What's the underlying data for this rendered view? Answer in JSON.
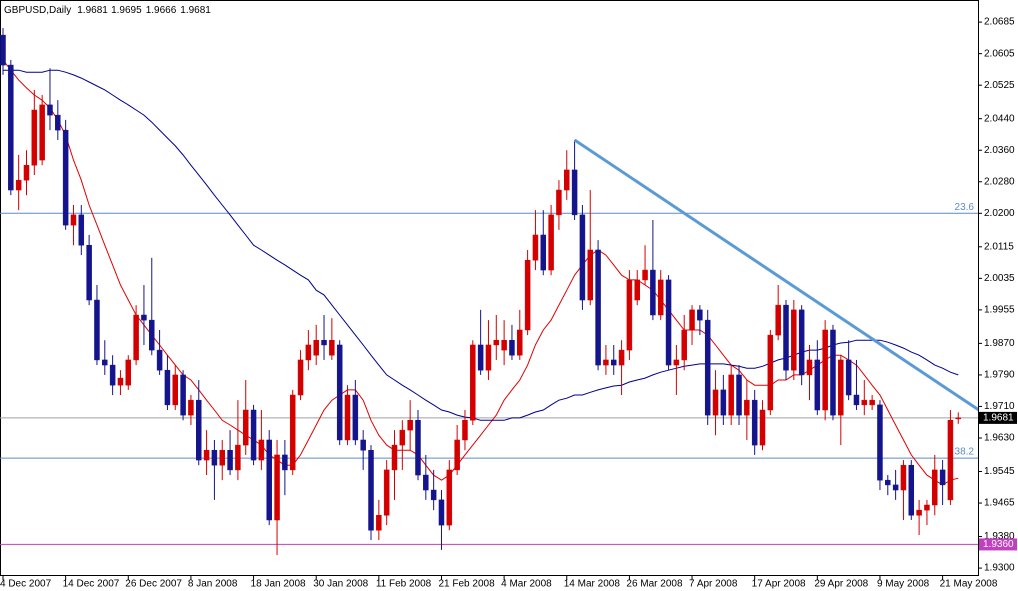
{
  "chart_data": {
    "type": "candlestick",
    "title": "GBPUSD,Daily",
    "categories": [
      "4 Dec 2007",
      null,
      null,
      null,
      null,
      null,
      null,
      null,
      "14 Dec 2007",
      null,
      null,
      null,
      null,
      null,
      null,
      null,
      "26 Dec 2007",
      null,
      null,
      null,
      null,
      null,
      null,
      null,
      "8 Jan 2008",
      null,
      null,
      null,
      null,
      null,
      null,
      null,
      "18 Jan 2008",
      null,
      null,
      null,
      null,
      null,
      null,
      null,
      "30 Jan 2008",
      null,
      null,
      null,
      null,
      null,
      null,
      null,
      "11 Feb 2008",
      null,
      null,
      null,
      null,
      null,
      null,
      null,
      "21 Feb 2008",
      null,
      null,
      null,
      null,
      null,
      null,
      null,
      "4 Mar 2008",
      null,
      null,
      null,
      null,
      null,
      null,
      null,
      "14 Mar 2008",
      null,
      null,
      null,
      null,
      null,
      null,
      null,
      "26 Mar 2008",
      null,
      null,
      null,
      null,
      null,
      null,
      null,
      "7 Apr 2008",
      null,
      null,
      null,
      null,
      null,
      null,
      null,
      "17 Apr 2008",
      null,
      null,
      null,
      null,
      null,
      null,
      null,
      "29 Apr 2008",
      null,
      null,
      null,
      null,
      null,
      null,
      null,
      "9 May 2008",
      null,
      null,
      null,
      null,
      null,
      null,
      null,
      "21 May 2008",
      null,
      null
    ],
    "open": [
      2.0652,
      2.0576,
      2.0259,
      2.0284,
      2.0322,
      2.0335,
      2.0475,
      2.0449,
      2.0411,
      2.017,
      2.0196,
      2.0119,
      1.998,
      1.9828,
      1.9815,
      1.9764,
      1.9764,
      1.9828,
      1.9942,
      1.9929,
      1.9853,
      1.9802,
      1.9714,
      1.979,
      1.9688,
      1.9726,
      1.9574,
      1.9599,
      1.9561,
      1.9599,
      1.9549,
      1.9612,
      1.9701,
      1.9574,
      1.9625,
      1.9422,
      1.9587,
      1.9549,
      1.9739,
      1.9828,
      1.984,
      1.9878,
      1.984,
      1.9866,
      1.9625,
      1.9739,
      1.9625,
      1.9599,
      1.9396,
      1.9434,
      1.9549,
      1.9612,
      1.965,
      1.9675,
      1.9536,
      1.9498,
      1.9473,
      1.9409,
      1.9549,
      1.9625,
      1.9675,
      1.9866,
      1.9802,
      1.9866,
      1.9853,
      1.9878,
      1.984,
      1.9904,
      2.0081,
      2.0145,
      2.0056,
      2.0196,
      2.0259,
      2.031,
      2.0196,
      1.998,
      2.0107,
      1.9815,
      1.9828,
      1.9815,
      1.9853,
      1.998,
      2.0031,
      2.0056,
      1.9942,
      2.0031,
      1.9815,
      1.9828,
      1.9904,
      1.9955,
      1.9929,
      1.9688,
      1.9752,
      1.9688,
      1.979,
      1.9688,
      1.9726,
      1.9612,
      1.9701,
      1.9891,
      1.9967,
      1.9802,
      1.9955,
      1.979,
      1.9828,
      1.9701,
      1.9904,
      1.9688,
      1.9828,
      1.9739,
      1.9714,
      1.9714,
      1.9714,
      1.9523,
      1.9511,
      1.9498,
      1.9561,
      1.9434,
      1.9447,
      1.946,
      1.9549,
      1.9473,
      1.9681
    ],
    "high": [
      2.067,
      2.0589,
      2.0348,
      2.036,
      2.0513,
      2.05,
      2.0568,
      2.0487,
      2.0437,
      2.0221,
      2.0221,
      2.0145,
      2.0018,
      1.9878,
      1.984,
      1.9802,
      1.984,
      1.9967,
      2.0018,
      2.0087,
      1.9904,
      1.984,
      1.9815,
      1.9802,
      1.9739,
      1.9777,
      1.965,
      1.9625,
      1.9625,
      1.965,
      1.9726,
      1.9777,
      1.9714,
      1.9701,
      1.965,
      1.9625,
      1.9625,
      1.9752,
      1.9853,
      1.9904,
      1.9917,
      1.9942,
      1.9934,
      1.9878,
      1.9764,
      1.9777,
      1.965,
      1.9612,
      1.9473,
      1.9574,
      1.965,
      1.9675,
      1.9726,
      1.9701,
      1.9587,
      1.9549,
      1.9498,
      1.9574,
      1.9663,
      1.9701,
      1.9878,
      1.9955,
      1.9929,
      1.9942,
      1.9929,
      1.9917,
      1.9955,
      2.0107,
      2.0208,
      2.0208,
      2.0221,
      2.0284,
      2.036,
      2.0386,
      2.0221,
      2.0259,
      2.0132,
      1.9866,
      1.9866,
      1.9878,
      2.0056,
      2.0056,
      2.0119,
      2.0183,
      2.0056,
      2.0043,
      1.9866,
      1.9942,
      1.9967,
      1.9967,
      1.9955,
      1.9802,
      1.979,
      1.9815,
      1.9815,
      1.9777,
      1.9752,
      1.9726,
      1.9904,
      2.0018,
      1.998,
      1.998,
      1.9967,
      1.9866,
      1.9878,
      1.9929,
      1.9917,
      1.984,
      1.9878,
      1.9828,
      1.9777,
      1.9739,
      1.9726,
      1.9536,
      1.9549,
      1.9574,
      1.9574,
      1.9473,
      1.9473,
      1.9587,
      1.9574,
      1.9701,
      1.9695
    ],
    "low": [
      2.0551,
      2.0246,
      2.0208,
      2.0246,
      2.0297,
      2.0322,
      2.0411,
      2.0386,
      2.0158,
      2.0119,
      2.0094,
      1.9967,
      1.9815,
      1.979,
      1.9739,
      1.9739,
      1.9752,
      1.9815,
      1.9866,
      1.984,
      1.979,
      1.9701,
      1.9701,
      1.9675,
      1.9663,
      1.9561,
      1.9536,
      1.9473,
      1.9523,
      1.9536,
      1.9523,
      1.9587,
      1.9561,
      1.9549,
      1.9409,
      1.9333,
      1.9485,
      1.9536,
      1.9726,
      1.9802,
      1.9815,
      1.9828,
      1.9828,
      1.9612,
      1.9612,
      1.9612,
      1.9549,
      1.9371,
      1.9371,
      1.9409,
      1.9473,
      1.9549,
      1.9599,
      1.9523,
      1.9473,
      1.9447,
      1.9346,
      1.9396,
      1.9536,
      1.9599,
      1.9663,
      1.979,
      1.9777,
      1.9828,
      1.9815,
      1.9828,
      1.9828,
      1.9891,
      2.0056,
      2.0043,
      2.0043,
      2.0158,
      2.0234,
      2.0183,
      1.9955,
      1.9967,
      1.9802,
      1.979,
      1.979,
      1.9739,
      1.9828,
      1.9967,
      2.0018,
      1.9929,
      1.9929,
      1.9802,
      1.9739,
      1.9802,
      1.9866,
      1.9891,
      1.9663,
      1.9637,
      1.9663,
      1.9663,
      1.9663,
      1.9625,
      1.9587,
      1.9599,
      1.9688,
      1.9878,
      1.9777,
      1.9777,
      1.9764,
      1.9726,
      1.9688,
      1.9675,
      1.9675,
      1.9612,
      1.9726,
      1.9701,
      1.9688,
      1.9701,
      1.9498,
      1.9485,
      1.9473,
      1.9422,
      1.9422,
      1.9384,
      1.9409,
      1.9434,
      1.946,
      1.946,
      1.9666
    ],
    "close": [
      2.0576,
      2.0259,
      2.0284,
      2.0322,
      2.0462,
      2.0475,
      2.0449,
      2.0411,
      2.017,
      2.0196,
      2.0119,
      1.998,
      1.9828,
      1.9815,
      1.9764,
      1.9782,
      1.9828,
      1.9942,
      1.9929,
      1.9853,
      1.9802,
      1.9714,
      1.979,
      1.9688,
      1.9726,
      1.9574,
      1.9599,
      1.9561,
      1.9599,
      1.9549,
      1.9612,
      1.9701,
      1.9574,
      1.9625,
      1.9422,
      1.9587,
      1.9549,
      1.9739,
      1.9828,
      1.9866,
      1.9878,
      1.9866,
      1.9878,
      1.9625,
      1.9739,
      1.9625,
      1.9599,
      1.9396,
      1.9434,
      1.9549,
      1.9612,
      1.965,
      1.9675,
      1.9536,
      1.9498,
      1.9473,
      1.9409,
      1.9549,
      1.9625,
      1.9675,
      1.9866,
      1.9802,
      1.9866,
      1.9878,
      1.9878,
      1.984,
      1.9904,
      2.0081,
      2.0145,
      2.0056,
      2.0196,
      2.0259,
      2.031,
      2.0196,
      1.998,
      2.0107,
      1.9815,
      1.9828,
      1.9815,
      1.9853,
      2.0031,
      2.0031,
      2.0056,
      1.9942,
      2.0031,
      1.9815,
      1.9828,
      1.9904,
      1.9955,
      1.9929,
      1.9688,
      1.9752,
      1.9688,
      1.979,
      1.9688,
      1.9726,
      1.9612,
      1.9701,
      1.9891,
      1.9967,
      1.9802,
      1.9955,
      1.979,
      1.9828,
      1.9701,
      1.9904,
      1.9688,
      1.9828,
      1.9739,
      1.9714,
      1.9726,
      1.9726,
      1.9523,
      1.9511,
      1.9498,
      1.9561,
      1.9434,
      1.9447,
      1.946,
      1.9549,
      1.9511,
      1.9675,
      1.9681
    ],
    "up_color": "#d40000",
    "down_color": "#14148c",
    "lines": [
      {
        "color": "#e00000",
        "values": [
          2.0589,
          2.0563,
          2.0538,
          2.0518,
          2.05,
          2.0487,
          2.0467,
          2.0437,
          2.0398,
          2.0335,
          2.0284,
          2.0221,
          2.017,
          2.0119,
          2.0069,
          2.0018,
          1.998,
          1.9942,
          1.9917,
          1.9891,
          1.9866,
          1.984,
          1.9815,
          1.979,
          1.9777,
          1.9752,
          1.9726,
          1.9701,
          1.9675,
          1.9663,
          1.965,
          1.9637,
          1.9625,
          1.9612,
          1.9587,
          1.9574,
          1.9561,
          1.9561,
          1.9587,
          1.9625,
          1.9663,
          1.9701,
          1.9726,
          1.9739,
          1.9752,
          1.9752,
          1.9726,
          1.9675,
          1.9637,
          1.9612,
          1.9599,
          1.9599,
          1.9599,
          1.9587,
          1.9561,
          1.9536,
          1.9523,
          1.9536,
          1.9561,
          1.9587,
          1.9612,
          1.9637,
          1.9663,
          1.9688,
          1.9726,
          1.9752,
          1.9777,
          1.9815,
          1.9866,
          1.9904,
          1.9929,
          1.9967,
          2.0005,
          2.0043,
          2.0069,
          2.0094,
          2.0107,
          2.0094,
          2.0069,
          2.0043,
          2.0031,
          2.0031,
          2.0018,
          2.0005,
          1.998,
          1.9955,
          1.9929,
          1.9904,
          1.9904,
          1.9904,
          1.9891,
          1.9866,
          1.984,
          1.9815,
          1.9802,
          1.9777,
          1.9764,
          1.9764,
          1.9764,
          1.9777,
          1.9777,
          1.979,
          1.979,
          1.9802,
          1.9815,
          1.9828,
          1.984,
          1.984,
          1.9828,
          1.9815,
          1.979,
          1.9764,
          1.9739,
          1.9701,
          1.9663,
          1.9625,
          1.9587,
          1.9561,
          1.9536,
          1.9523,
          1.9511,
          1.9523,
          1.9528
        ]
      },
      {
        "color": "#00008c",
        "values": [
          2.0563,
          2.0563,
          2.0563,
          2.0558,
          2.0558,
          2.0558,
          2.0563,
          2.0563,
          2.0558,
          2.0551,
          2.0543,
          2.0533,
          2.0523,
          2.0513,
          2.05,
          2.0487,
          2.0475,
          2.0462,
          2.0449,
          2.0431,
          2.0411,
          2.0391,
          2.0371,
          2.0348,
          2.0322,
          2.0297,
          2.0272,
          2.0246,
          2.0221,
          2.0196,
          2.017,
          2.0145,
          2.0119,
          2.0107,
          2.0094,
          2.0081,
          2.0069,
          2.0056,
          2.0043,
          2.0031,
          2.0005,
          1.9993,
          1.9967,
          1.9942,
          1.9917,
          1.9891,
          1.9866,
          1.984,
          1.9815,
          1.979,
          1.9777,
          1.9764,
          1.9752,
          1.9739,
          1.9726,
          1.9714,
          1.9701,
          1.9696,
          1.9688,
          1.9683,
          1.9681,
          1.9675,
          1.9675,
          1.9675,
          1.9675,
          1.9681,
          1.9681,
          1.9688,
          1.9696,
          1.9701,
          1.9714,
          1.9726,
          1.9731,
          1.9739,
          1.9739,
          1.9746,
          1.9752,
          1.9757,
          1.9762,
          1.9764,
          1.9772,
          1.9777,
          1.9782,
          1.979,
          1.9797,
          1.9802,
          1.9807,
          1.9812,
          1.9815,
          1.9818,
          1.9818,
          1.9818,
          1.9818,
          1.9815,
          1.9812,
          1.9807,
          1.9807,
          1.9812,
          1.982,
          1.9828,
          1.9833,
          1.984,
          1.9848,
          1.9853,
          1.9853,
          1.9858,
          1.9866,
          1.9871,
          1.9873,
          1.9878,
          1.9878,
          1.9878,
          1.9878,
          1.9873,
          1.9866,
          1.9858,
          1.9848,
          1.984,
          1.9828,
          1.9815,
          1.9807,
          1.9797,
          1.979
        ]
      }
    ],
    "trendline": {
      "color": "#5b9bd5",
      "x": [
        73,
        125
      ],
      "values": [
        2.0386,
        1.9696
      ]
    },
    "fib_levels": [
      {
        "ratio": 23.6,
        "price": 2.02,
        "color": "#5a8ccc"
      },
      {
        "ratio": 38.2,
        "price": 1.9579,
        "color": "#5a8ccc"
      }
    ],
    "alert_level": {
      "value": 1.936,
      "label": "1.9360",
      "color": "#c040c0"
    },
    "price_line_color": "#a0a0a0",
    "price_label": {
      "value": 1.9681,
      "label": "1.9681"
    },
    "ylim": [
      1.9285,
      2.0736
    ],
    "yticks": [
      2.0685,
      2.0605,
      2.0525,
      {
        "value": 2.044,
        "label": "2.0440"
      },
      {
        "value": 2.036,
        "label": "2.0360"
      },
      {
        "value": 2.028,
        "label": "2.0280"
      },
      {
        "value": 2.02,
        "label": "2.0200"
      },
      2.0115,
      2.0035,
      1.9955,
      {
        "value": 1.987,
        "label": "1.9870"
      },
      {
        "value": 1.979,
        "label": "1.9790"
      },
      {
        "value": 1.971,
        "label": "1.9710"
      },
      {
        "value": 1.963,
        "label": "1.9630"
      },
      1.9545,
      1.9465,
      {
        "value": 1.938,
        "label": "1.9380"
      },
      {
        "value": 1.93,
        "label": "1.9300"
      }
    ]
  }
}
